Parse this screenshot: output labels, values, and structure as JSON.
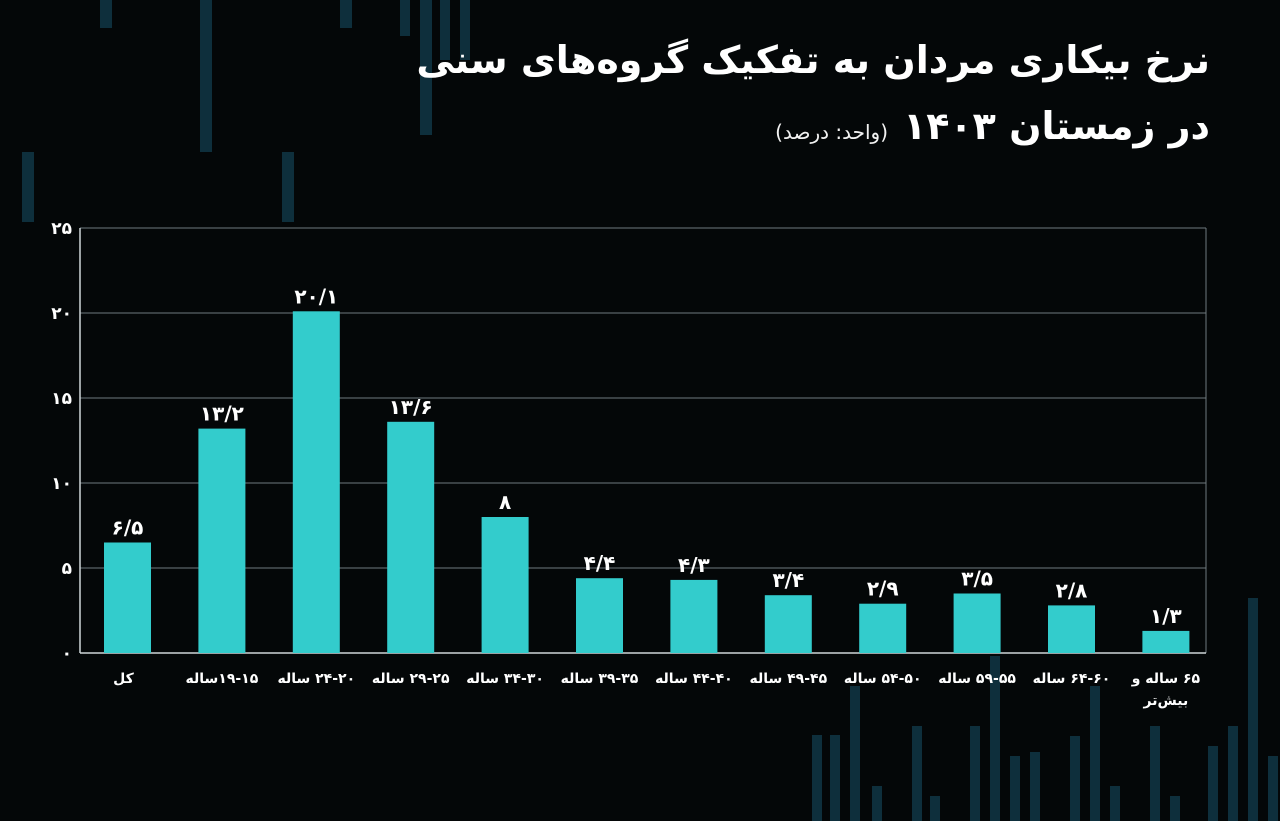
{
  "header": {
    "title": "نرخ بیکاری مردان به تفکیک گروه‌های سنی",
    "subtitle": "در زمستان ۱۴۰۳",
    "unit_note": "(واحد: درصد)"
  },
  "colors": {
    "background": "#040708",
    "bar": "#33cccc",
    "axis": "#cfd6d8",
    "grid": "#6e7a7e",
    "decor": "#0e2f3c"
  },
  "chart_data": {
    "type": "bar",
    "title": "نرخ بیکاری مردان به تفکیک گروه‌های سنی",
    "subtitle": "در زمستان ۱۴۰۳",
    "unit": "(واحد: درصد)",
    "categories": [
      "کل",
      "۱۹-۱۵ساله",
      "۲۴-۲۰ ساله",
      "۲۹-۲۵ ساله",
      "۳۴-۳۰ ساله",
      "۳۹-۳۵ ساله",
      "۴۴-۴۰ ساله",
      "۴۹-۴۵ ساله",
      "۵۴-۵۰ ساله",
      "۵۹-۵۵ ساله",
      "۶۴-۶۰ ساله",
      "۶۵ ساله و بیش‌تر"
    ],
    "values": [
      6.5,
      13.2,
      20.1,
      13.6,
      8,
      4.4,
      4.3,
      3.4,
      2.9,
      3.5,
      2.8,
      1.3
    ],
    "value_labels": [
      "۶/۵",
      "۱۳/۲",
      "۲۰/۱",
      "۱۳/۶",
      "۸",
      "۴/۴",
      "۴/۳",
      "۳/۴",
      "۲/۹",
      "۳/۵",
      "۲/۸",
      "۱/۳"
    ],
    "ylim": [
      0,
      25
    ],
    "yticks": [
      0,
      5,
      10,
      15,
      20,
      25
    ],
    "ytick_labels": [
      "۰",
      "۵",
      "۱۰",
      "۱۵",
      "۲۰",
      "۲۵"
    ],
    "grid": true,
    "xlabel": "",
    "ylabel": ""
  }
}
